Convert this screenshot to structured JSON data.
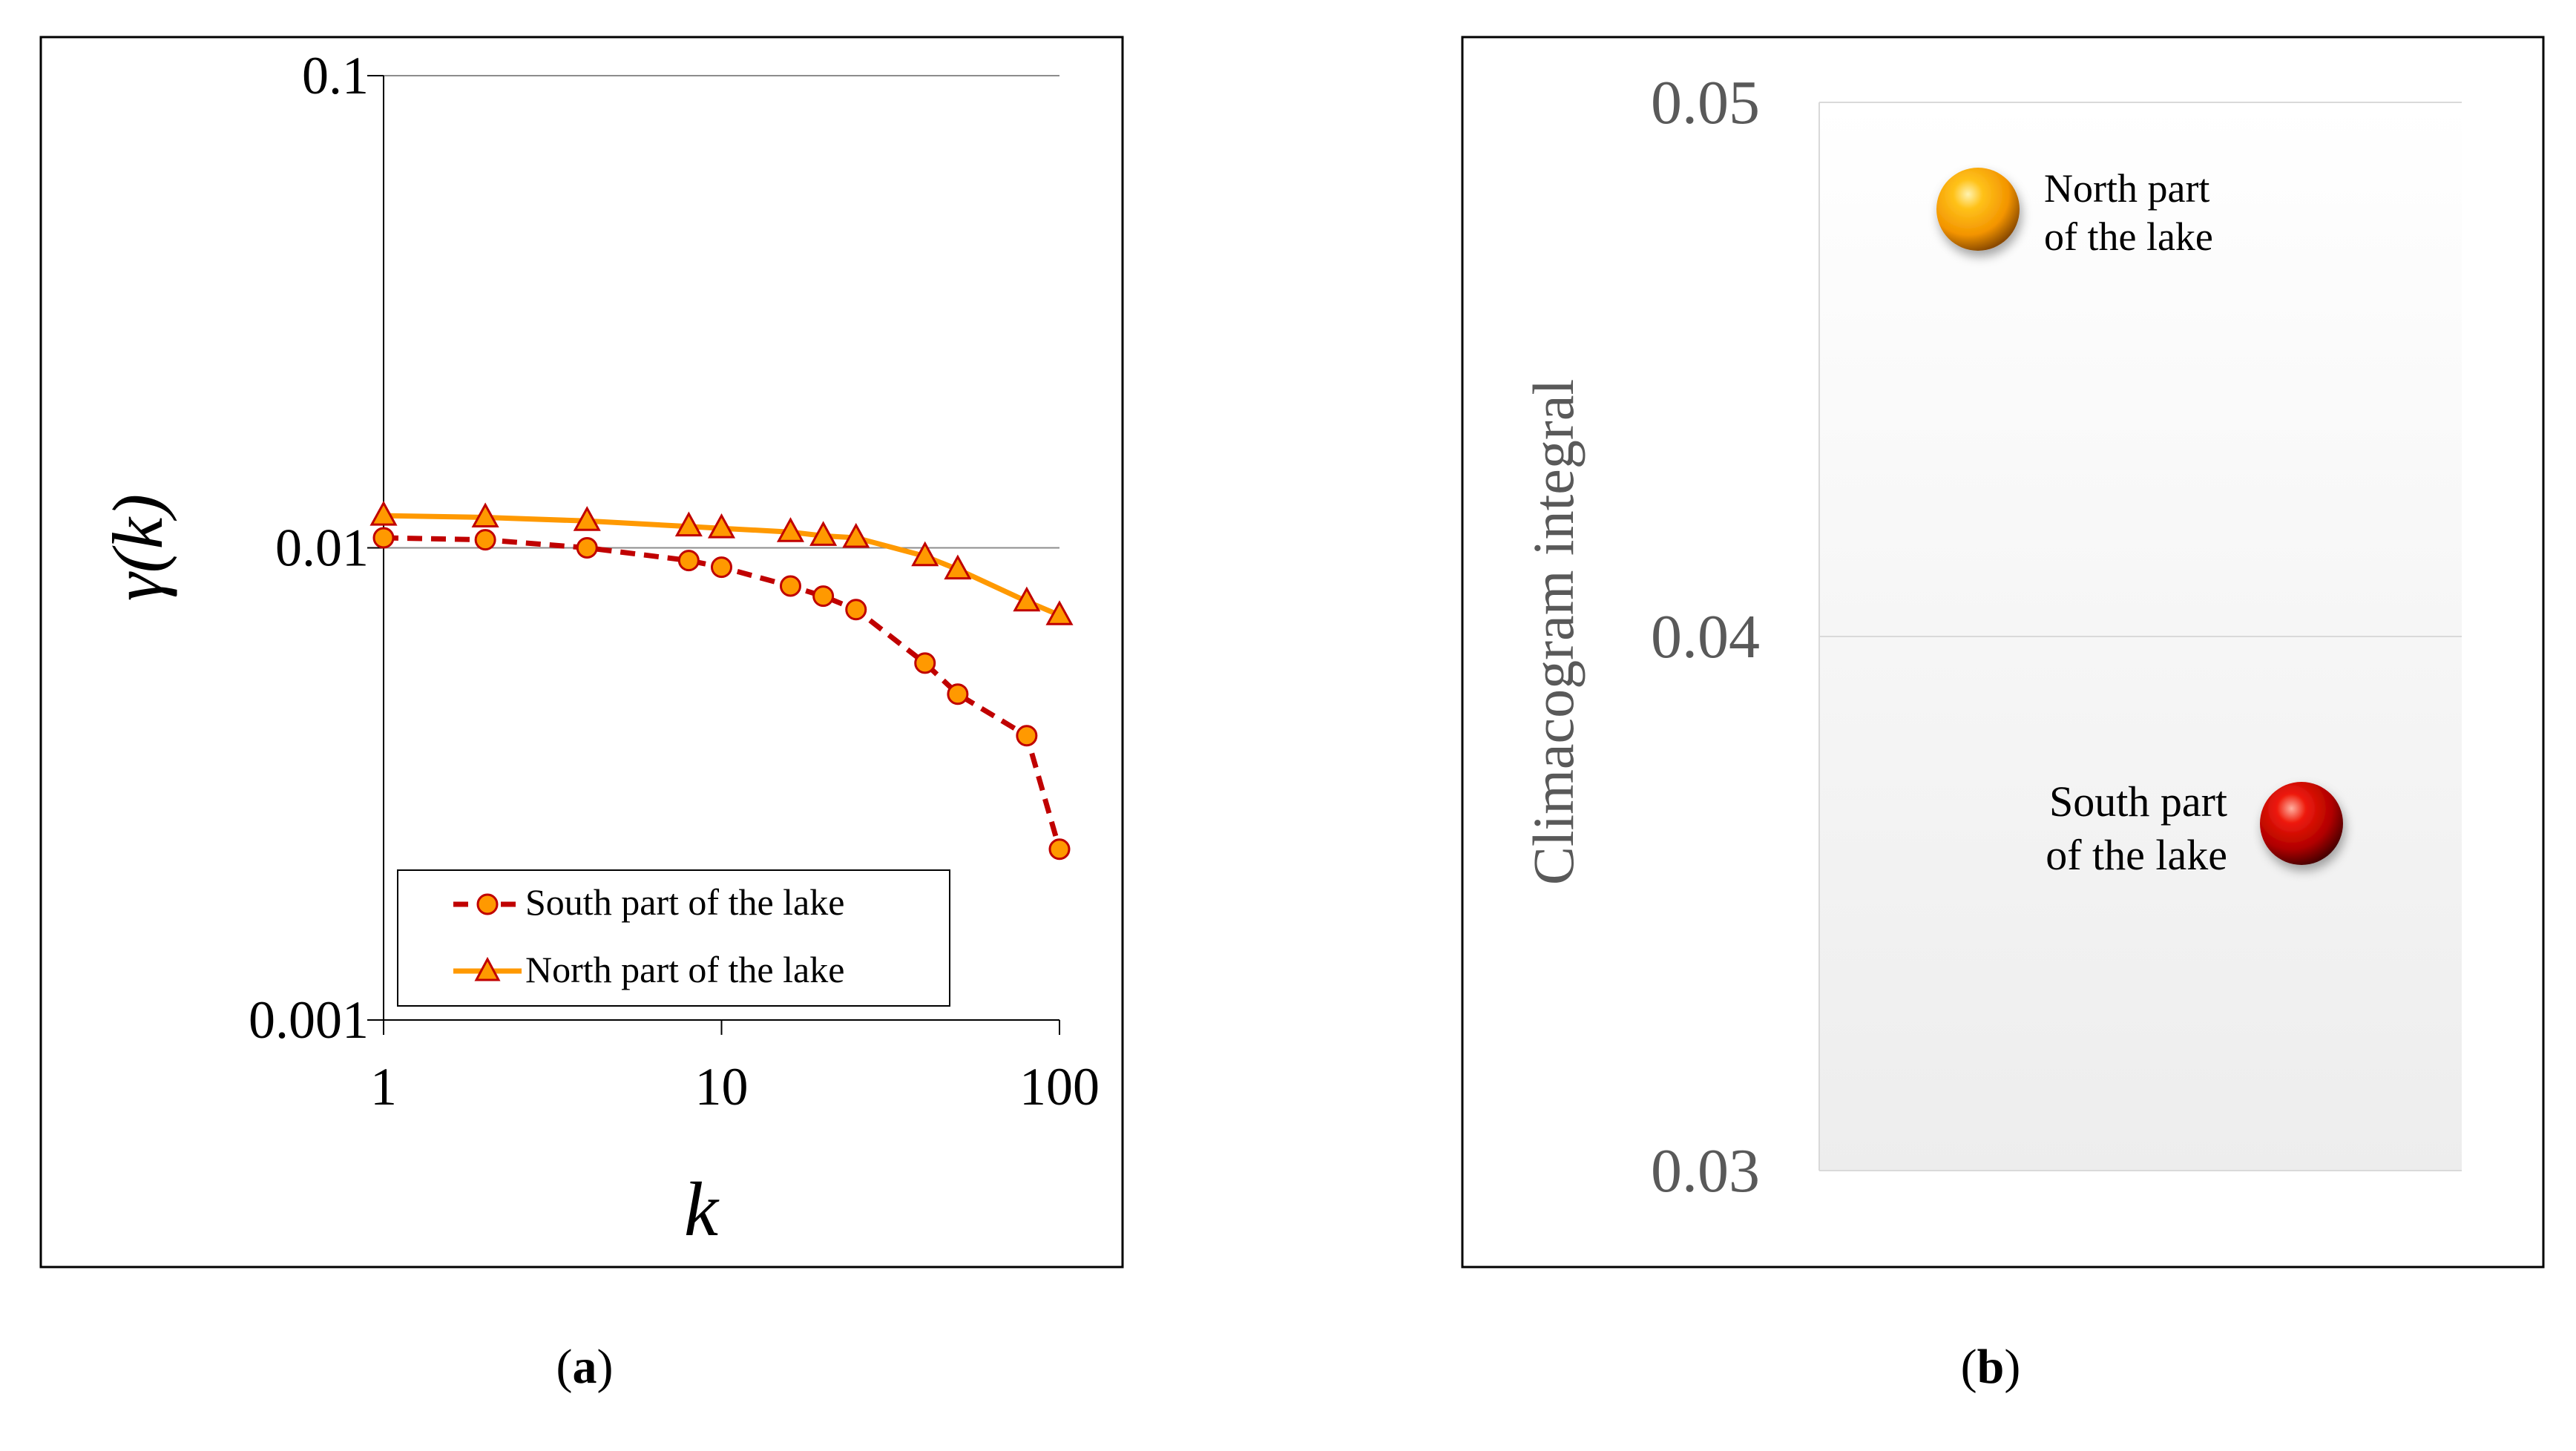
{
  "chart_data": [
    {
      "type": "line",
      "panel_label": "a",
      "xscale": "log",
      "yscale": "log",
      "xlabel": "k",
      "ylabel": "γ(k)",
      "xlim": [
        1,
        100
      ],
      "ylim": [
        0.001,
        0.1
      ],
      "xticks": [
        "1",
        "10",
        "100"
      ],
      "yticks": [
        "0.1",
        "0.01",
        "0.001"
      ],
      "grid": "horizontal",
      "legend_position": "bottom-left",
      "series": [
        {
          "name": "South part of the lake",
          "line_style": "dashed",
          "line_color": "#c00000",
          "marker": "circle",
          "marker_fill": "#ff9900",
          "marker_edge": "#c00000",
          "x": [
            1,
            2,
            4,
            8,
            10,
            16,
            20,
            25,
            40,
            50,
            80,
            100
          ],
          "y": [
            0.0105,
            0.0104,
            0.01,
            0.0094,
            0.0091,
            0.0083,
            0.0079,
            0.0074,
            0.0057,
            0.0049,
            0.004,
            0.0023
          ]
        },
        {
          "name": "North part of the lake",
          "line_style": "solid",
          "line_color": "#ff9900",
          "marker": "triangle",
          "marker_fill": "#ff9900",
          "marker_edge": "#c00000",
          "x": [
            1,
            2,
            4,
            8,
            10,
            16,
            20,
            25,
            40,
            50,
            80,
            100
          ],
          "y": [
            0.0117,
            0.0116,
            0.0114,
            0.0111,
            0.011,
            0.0108,
            0.0106,
            0.0105,
            0.0096,
            0.009,
            0.0077,
            0.0072
          ]
        }
      ]
    },
    {
      "type": "scatter",
      "panel_label": "b",
      "ylabel": "Climacogram integral",
      "ylim": [
        0.03,
        0.05
      ],
      "yticks": [
        "0.05",
        "0.04",
        "0.03"
      ],
      "grid": "horizontal",
      "points": [
        {
          "label_line1": "North part",
          "label_line2": "of the lake",
          "y": 0.048,
          "x_position": "left",
          "color": "#ffa500"
        },
        {
          "label_line1": "South part",
          "label_line2": "of the lake",
          "y": 0.0365,
          "x_position": "right",
          "color": "#d00000"
        }
      ]
    }
  ]
}
